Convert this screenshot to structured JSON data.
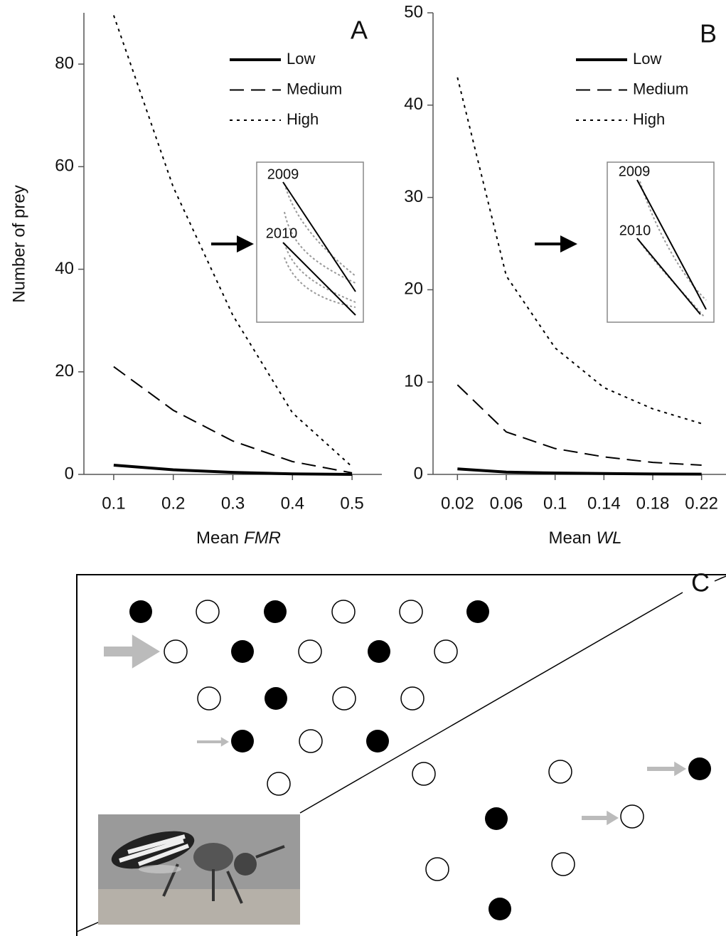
{
  "chart_data": [
    {
      "type": "line",
      "panel_label": "A",
      "ylabel": "Number of prey",
      "xlabel": "Mean",
      "xlabel_italic": "FMR",
      "x": [
        0.1,
        0.2,
        0.3,
        0.4,
        0.5
      ],
      "series": [
        {
          "name": "Low",
          "color": "#000000",
          "dash": "solid",
          "values": [
            1.8,
            0.9,
            0.4,
            0.1,
            0
          ]
        },
        {
          "name": "Medium",
          "color": "#000000",
          "dash": "dashed",
          "values": [
            21,
            12.5,
            6.5,
            2.5,
            0.3
          ]
        },
        {
          "name": "High",
          "color": "#000000",
          "dash": "dotted",
          "values": [
            89.5,
            56,
            31,
            12,
            1.5
          ]
        }
      ],
      "xlim": [
        0.05,
        0.55
      ],
      "xticks": [
        0.1,
        0.2,
        0.3,
        0.4,
        0.5
      ],
      "ylim": [
        0,
        90
      ],
      "yticks": [
        0,
        20,
        40,
        60,
        80
      ],
      "inset_labels": [
        "2009",
        "2010"
      ]
    },
    {
      "type": "line",
      "panel_label": "B",
      "xlabel": "Mean",
      "xlabel_italic": "WL",
      "x": [
        0.02,
        0.06,
        0.1,
        0.14,
        0.18,
        0.22
      ],
      "series": [
        {
          "name": "Low",
          "color": "#000000",
          "dash": "solid",
          "values": [
            0.6,
            0.25,
            0.15,
            0.1,
            0.05,
            0.03
          ]
        },
        {
          "name": "Medium",
          "color": "#000000",
          "dash": "dashed",
          "values": [
            9.7,
            4.6,
            2.8,
            1.9,
            1.3,
            1.0
          ]
        },
        {
          "name": "High",
          "color": "#000000",
          "dash": "dotted",
          "values": [
            43,
            21.5,
            13.7,
            9.4,
            7.1,
            5.5
          ]
        }
      ],
      "xlim": [
        0,
        0.24
      ],
      "xticks": [
        0.02,
        0.06,
        0.1,
        0.14,
        0.18,
        0.22
      ],
      "ylim": [
        0,
        50
      ],
      "yticks": [
        0,
        10,
        20,
        30,
        40,
        50
      ],
      "inset_labels": [
        "2009",
        "2010"
      ]
    }
  ],
  "panel_c": {
    "label": "C"
  }
}
